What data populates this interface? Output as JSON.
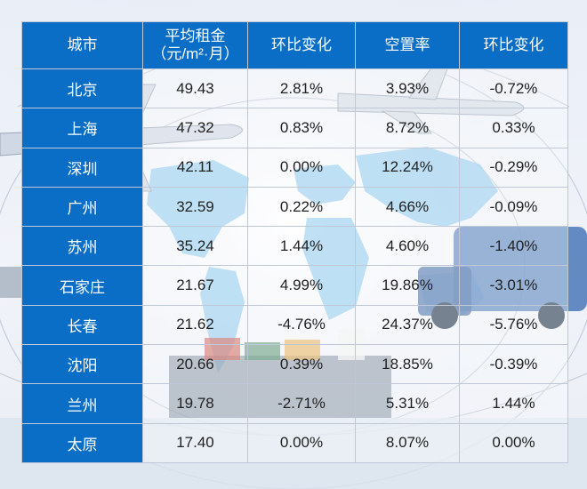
{
  "table": {
    "headers": {
      "city": "城市",
      "rent_line1": "平均租金",
      "rent_line2": "（元/m²·月）",
      "rent_mom": "环比变化",
      "vacancy": "空置率",
      "vacancy_mom": "环比变化"
    },
    "rows": [
      [
        "北京",
        "49.43",
        "2.81%",
        "3.93%",
        "-0.72%"
      ],
      [
        "上海",
        "47.32",
        "0.83%",
        "8.72%",
        "0.33%"
      ],
      [
        "深圳",
        "42.11",
        "0.00%",
        "12.24%",
        "-0.29%"
      ],
      [
        "广州",
        "32.59",
        "0.22%",
        "4.66%",
        "-0.09%"
      ],
      [
        "苏州",
        "35.24",
        "1.44%",
        "4.60%",
        "-1.40%"
      ],
      [
        "石家庄",
        "21.67",
        "4.99%",
        "19.86%",
        "-3.01%"
      ],
      [
        "长春",
        "21.62",
        "-4.76%",
        "24.37%",
        "-5.76%"
      ],
      [
        "沈阳",
        "20.66",
        "0.39%",
        "18.85%",
        "-0.39%"
      ],
      [
        "兰州",
        "19.78",
        "-2.71%",
        "5.31%",
        "1.44%"
      ],
      [
        "太原",
        "17.40",
        "0.00%",
        "8.07%",
        "0.00%"
      ]
    ]
  },
  "background_icons": [
    "world-map",
    "airplane-icon",
    "truck-icon",
    "cargo-ship-icon"
  ],
  "colors": {
    "header_bg": "#0a6ec6",
    "header_text": "#ffffff",
    "grid": "#bfc8d6"
  }
}
